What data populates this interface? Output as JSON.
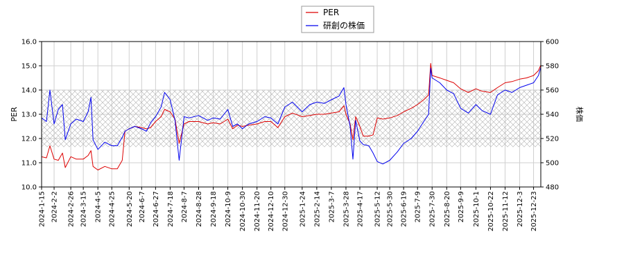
{
  "chart_data": {
    "type": "line",
    "legend": {
      "placement": "top-center",
      "entries": [
        "PER",
        "研創の株価"
      ]
    },
    "ylabel_left": "PER",
    "ylabel_right": "株価",
    "ylim_left": [
      10.0,
      16.0
    ],
    "ylim_right": [
      480,
      600
    ],
    "yticks_left": [
      "10.0",
      "11.0",
      "12.0",
      "13.0",
      "14.0",
      "15.0",
      "16.0"
    ],
    "yticks_right": [
      "480",
      "500",
      "520",
      "540",
      "560",
      "580",
      "600"
    ],
    "xticks": [
      "2024-1-15",
      "2024-2-2",
      "2024-2-26",
      "2024-3-15",
      "2024-4-5",
      "2024-4-25",
      "2024-5-20",
      "2024-6-7",
      "2024-6-27",
      "2024-7-18",
      "2024-8-7",
      "2024-8-28",
      "2024-9-18",
      "2024-10-9",
      "2024-10-30",
      "2024-11-20",
      "2024-12-10",
      "2024-12-30",
      "2025-1-24",
      "2025-2-14",
      "2025-3-7",
      "2025-3-28",
      "2025-4-17",
      "2025-5-12",
      "2025-5-30",
      "2025-6-19",
      "2025-7-9",
      "2025-7-30",
      "2025-8-20",
      "2025-9-9",
      "2025-10-1",
      "2025-10-22",
      "2025-11-12",
      "2025-12-3",
      "2025-12-23"
    ],
    "grid": true,
    "band": {
      "axis": "left",
      "range": [
        11.65,
        14.0
      ],
      "hatched": true
    },
    "series": [
      {
        "name": "PER",
        "color": "#dd0000",
        "axis": "left",
        "points": [
          [
            "2024-1-15",
            11.25
          ],
          [
            "2024-1-22",
            11.2
          ],
          [
            "2024-1-27",
            11.7
          ],
          [
            "2024-2-2",
            11.15
          ],
          [
            "2024-2-8",
            11.1
          ],
          [
            "2024-2-14",
            11.4
          ],
          [
            "2024-2-18",
            10.8
          ],
          [
            "2024-2-26",
            11.25
          ],
          [
            "2024-3-5",
            11.15
          ],
          [
            "2024-3-15",
            11.15
          ],
          [
            "2024-3-22",
            11.3
          ],
          [
            "2024-3-26",
            11.5
          ],
          [
            "2024-3-29",
            10.85
          ],
          [
            "2024-4-5",
            10.7
          ],
          [
            "2024-4-15",
            10.85
          ],
          [
            "2024-4-25",
            10.75
          ],
          [
            "2024-5-3",
            10.75
          ],
          [
            "2024-5-10",
            11.1
          ],
          [
            "2024-5-14",
            12.3
          ],
          [
            "2024-5-20",
            12.4
          ],
          [
            "2024-5-28",
            12.5
          ],
          [
            "2024-6-7",
            12.45
          ],
          [
            "2024-6-14",
            12.4
          ],
          [
            "2024-6-20",
            12.45
          ],
          [
            "2024-6-27",
            12.7
          ],
          [
            "2024-7-5",
            12.9
          ],
          [
            "2024-7-10",
            13.2
          ],
          [
            "2024-7-18",
            13.1
          ],
          [
            "2024-7-25",
            12.8
          ],
          [
            "2024-7-31",
            11.8
          ],
          [
            "2024-8-7",
            12.6
          ],
          [
            "2024-8-14",
            12.7
          ],
          [
            "2024-8-28",
            12.7
          ],
          [
            "2024-9-10",
            12.6
          ],
          [
            "2024-9-18",
            12.65
          ],
          [
            "2024-9-28",
            12.6
          ],
          [
            "2024-10-9",
            12.8
          ],
          [
            "2024-10-16",
            12.4
          ],
          [
            "2024-10-23",
            12.55
          ],
          [
            "2024-10-30",
            12.5
          ],
          [
            "2024-11-8",
            12.55
          ],
          [
            "2024-11-20",
            12.6
          ],
          [
            "2024-12-1",
            12.7
          ],
          [
            "2024-12-10",
            12.7
          ],
          [
            "2024-12-20",
            12.45
          ],
          [
            "2024-12-30",
            12.9
          ],
          [
            "2025-1-10",
            13.05
          ],
          [
            "2025-1-24",
            12.9
          ],
          [
            "2025-2-4",
            12.95
          ],
          [
            "2025-2-14",
            13.0
          ],
          [
            "2025-2-25",
            13.0
          ],
          [
            "2025-3-7",
            13.05
          ],
          [
            "2025-3-18",
            13.1
          ],
          [
            "2025-3-25",
            13.35
          ],
          [
            "2025-3-28",
            13.0
          ],
          [
            "2025-4-3",
            12.6
          ],
          [
            "2025-4-7",
            11.95
          ],
          [
            "2025-4-11",
            12.9
          ],
          [
            "2025-4-17",
            12.5
          ],
          [
            "2025-4-22",
            12.1
          ],
          [
            "2025-4-30",
            12.1
          ],
          [
            "2025-5-6",
            12.15
          ],
          [
            "2025-5-12",
            12.85
          ],
          [
            "2025-5-20",
            12.8
          ],
          [
            "2025-5-30",
            12.85
          ],
          [
            "2025-6-10",
            12.95
          ],
          [
            "2025-6-19",
            13.1
          ],
          [
            "2025-6-30",
            13.25
          ],
          [
            "2025-7-9",
            13.4
          ],
          [
            "2025-7-18",
            13.6
          ],
          [
            "2025-7-25",
            13.8
          ],
          [
            "2025-7-28",
            15.1
          ],
          [
            "2025-7-30",
            14.6
          ],
          [
            "2025-8-10",
            14.5
          ],
          [
            "2025-8-20",
            14.4
          ],
          [
            "2025-8-30",
            14.3
          ],
          [
            "2025-9-9",
            14.05
          ],
          [
            "2025-9-20",
            13.9
          ],
          [
            "2025-10-1",
            14.05
          ],
          [
            "2025-10-10",
            13.95
          ],
          [
            "2025-10-22",
            13.9
          ],
          [
            "2025-11-1",
            14.1
          ],
          [
            "2025-11-12",
            14.3
          ],
          [
            "2025-11-22",
            14.35
          ],
          [
            "2025-12-3",
            14.45
          ],
          [
            "2025-12-13",
            14.5
          ],
          [
            "2025-12-23",
            14.6
          ],
          [
            "2025-12-30",
            14.8
          ],
          [
            "2026-1-5",
            15.2
          ]
        ]
      },
      {
        "name": "研創の株価",
        "color": "#0000ee",
        "axis": "right",
        "points": [
          [
            "2024-1-15",
            537
          ],
          [
            "2024-1-22",
            534
          ],
          [
            "2024-1-27",
            560
          ],
          [
            "2024-2-2",
            532
          ],
          [
            "2024-2-8",
            544
          ],
          [
            "2024-2-14",
            548
          ],
          [
            "2024-2-18",
            519
          ],
          [
            "2024-2-26",
            532
          ],
          [
            "2024-3-5",
            536
          ],
          [
            "2024-3-15",
            534
          ],
          [
            "2024-3-22",
            542
          ],
          [
            "2024-3-26",
            554
          ],
          [
            "2024-3-29",
            519
          ],
          [
            "2024-4-5",
            511
          ],
          [
            "2024-4-15",
            517
          ],
          [
            "2024-4-25",
            514
          ],
          [
            "2024-5-3",
            514
          ],
          [
            "2024-5-10",
            521
          ],
          [
            "2024-5-14",
            526
          ],
          [
            "2024-5-20",
            528
          ],
          [
            "2024-5-28",
            530
          ],
          [
            "2024-6-7",
            528
          ],
          [
            "2024-6-14",
            526
          ],
          [
            "2024-6-20",
            533
          ],
          [
            "2024-6-27",
            538
          ],
          [
            "2024-7-5",
            546
          ],
          [
            "2024-7-10",
            558
          ],
          [
            "2024-7-18",
            552
          ],
          [
            "2024-7-25",
            535
          ],
          [
            "2024-7-31",
            502
          ],
          [
            "2024-8-7",
            538
          ],
          [
            "2024-8-14",
            537
          ],
          [
            "2024-8-28",
            539
          ],
          [
            "2024-9-10",
            535
          ],
          [
            "2024-9-18",
            537
          ],
          [
            "2024-9-28",
            536
          ],
          [
            "2024-10-9",
            544
          ],
          [
            "2024-10-16",
            530
          ],
          [
            "2024-10-23",
            532
          ],
          [
            "2024-10-30",
            528
          ],
          [
            "2024-11-8",
            532
          ],
          [
            "2024-11-20",
            534
          ],
          [
            "2024-12-1",
            538
          ],
          [
            "2024-12-10",
            537
          ],
          [
            "2024-12-20",
            532
          ],
          [
            "2024-12-30",
            546
          ],
          [
            "2025-1-10",
            550
          ],
          [
            "2025-1-24",
            542
          ],
          [
            "2025-2-4",
            548
          ],
          [
            "2025-2-14",
            550
          ],
          [
            "2025-2-25",
            549
          ],
          [
            "2025-3-7",
            552
          ],
          [
            "2025-3-18",
            555
          ],
          [
            "2025-3-25",
            562
          ],
          [
            "2025-3-28",
            548
          ],
          [
            "2025-4-3",
            530
          ],
          [
            "2025-4-7",
            503
          ],
          [
            "2025-4-11",
            535
          ],
          [
            "2025-4-17",
            518
          ],
          [
            "2025-4-22",
            515
          ],
          [
            "2025-4-30",
            514
          ],
          [
            "2025-5-6",
            508
          ],
          [
            "2025-5-12",
            501
          ],
          [
            "2025-5-20",
            499
          ],
          [
            "2025-5-30",
            502
          ],
          [
            "2025-6-10",
            509
          ],
          [
            "2025-6-19",
            516
          ],
          [
            "2025-6-30",
            520
          ],
          [
            "2025-7-9",
            526
          ],
          [
            "2025-7-18",
            534
          ],
          [
            "2025-7-25",
            540
          ],
          [
            "2025-7-28",
            578
          ],
          [
            "2025-7-30",
            570
          ],
          [
            "2025-8-10",
            566
          ],
          [
            "2025-8-20",
            560
          ],
          [
            "2025-8-30",
            557
          ],
          [
            "2025-9-9",
            545
          ],
          [
            "2025-9-20",
            541
          ],
          [
            "2025-10-1",
            548
          ],
          [
            "2025-10-10",
            543
          ],
          [
            "2025-10-22",
            540
          ],
          [
            "2025-11-1",
            556
          ],
          [
            "2025-11-12",
            560
          ],
          [
            "2025-11-22",
            558
          ],
          [
            "2025-12-3",
            562
          ],
          [
            "2025-12-13",
            564
          ],
          [
            "2025-12-23",
            566
          ],
          [
            "2025-12-30",
            572
          ],
          [
            "2026-1-5",
            584
          ]
        ]
      }
    ]
  }
}
